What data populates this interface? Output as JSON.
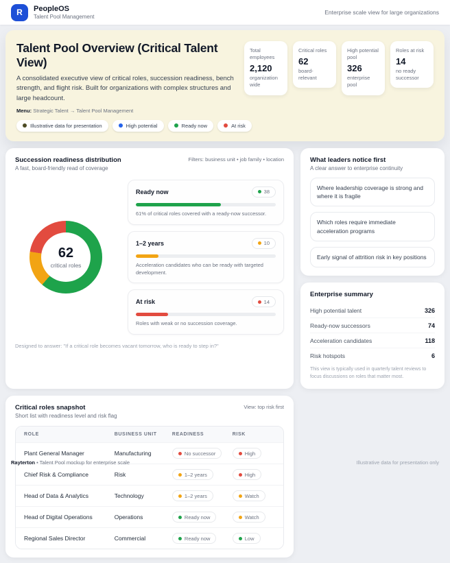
{
  "colors": {
    "brand": "#1d4fd7",
    "green": "#1ea34b",
    "amber": "#f2a413",
    "red": "#e24b3f",
    "blue": "#2563eb",
    "olive": "#4d4b24"
  },
  "header": {
    "logo_letter": "R",
    "app_name": "PeopleOS",
    "app_subtitle": "Talent Pool Management",
    "right_note": "Enterprise scale view for large organizations"
  },
  "hero": {
    "title": "Talent Pool Overview (Critical Talent View)",
    "description": "A consolidated executive view of critical roles, succession readiness, bench strength, and flight risk. Built for organizations with complex structures and large headcount.",
    "menu_label": "Menu:",
    "menu_path": "Strategic Talent → Talent Pool Management",
    "pills": [
      {
        "label": "Illustrative data for presentation",
        "color": "olive"
      },
      {
        "label": "High potential",
        "color": "blue"
      },
      {
        "label": "Ready now",
        "color": "green"
      },
      {
        "label": "At risk",
        "color": "red"
      }
    ],
    "kpis": [
      {
        "label": "Total employees",
        "value": "2,120",
        "note": "organization wide"
      },
      {
        "label": "Critical roles",
        "value": "62",
        "note": "board-relevant"
      },
      {
        "label": "High potential pool",
        "value": "326",
        "note": "enterprise pool"
      },
      {
        "label": "Roles at risk",
        "value": "14",
        "note": "no ready successor"
      }
    ]
  },
  "succession": {
    "title": "Succession readiness distribution",
    "subtitle": "A fast, board-friendly read of coverage",
    "filters": "Filters: business unit • job family • location",
    "donut_center_value": "62",
    "donut_center_label": "critical roles",
    "items": [
      {
        "label": "Ready now",
        "count": "38",
        "pct": "61%",
        "color": "green",
        "caption": "61% of critical roles covered with a ready-now successor."
      },
      {
        "label": "1–2 years",
        "count": "10",
        "pct": "16%",
        "color": "amber",
        "caption": "Acceleration candidates who can be ready with targeted development."
      },
      {
        "label": "At risk",
        "count": "14",
        "pct": "23%",
        "color": "red",
        "caption": "Roles with weak or no succession coverage."
      }
    ],
    "footnote": "Designed to answer: \"If a critical role becomes vacant tomorrow, who is ready to step in?\""
  },
  "leaders": {
    "title": "What leaders notice first",
    "subtitle": "A clear answer to enterprise continuity",
    "items": [
      "Where leadership coverage is strong and where it is fragile",
      "Which roles require immediate acceleration programs",
      "Early signal of attrition risk in key positions"
    ]
  },
  "summary": {
    "title": "Enterprise summary",
    "rows": [
      {
        "label": "High potential talent",
        "value": "326"
      },
      {
        "label": "Ready-now successors",
        "value": "74"
      },
      {
        "label": "Acceleration candidates",
        "value": "118"
      },
      {
        "label": "Risk hotspots",
        "value": "6"
      }
    ],
    "footnote": "This view is typically used in quarterly talent reviews to focus discussions on roles that matter most."
  },
  "snapshot": {
    "title": "Critical roles snapshot",
    "subtitle": "Short list with readiness level and risk flag",
    "view_note": "View: top risk first",
    "columns": [
      "ROLE",
      "BUSINESS UNIT",
      "READINESS",
      "RISK"
    ],
    "rows": [
      {
        "role": "Plant General Manager",
        "business_unit": "Manufacturing",
        "readiness": {
          "label": "No successor",
          "color": "red"
        },
        "risk": {
          "label": "High",
          "color": "red"
        }
      },
      {
        "role": "Chief Risk & Compliance",
        "business_unit": "Risk",
        "readiness": {
          "label": "1–2 years",
          "color": "amber"
        },
        "risk": {
          "label": "High",
          "color": "red"
        }
      },
      {
        "role": "Head of Data & Analytics",
        "business_unit": "Technology",
        "readiness": {
          "label": "1–2 years",
          "color": "amber"
        },
        "risk": {
          "label": "Watch",
          "color": "amber"
        }
      },
      {
        "role": "Head of Digital Operations",
        "business_unit": "Operations",
        "readiness": {
          "label": "Ready now",
          "color": "green"
        },
        "risk": {
          "label": "Watch",
          "color": "amber"
        }
      },
      {
        "role": "Regional Sales Director",
        "business_unit": "Commercial",
        "readiness": {
          "label": "Ready now",
          "color": "green"
        },
        "risk": {
          "label": "Low",
          "color": "green"
        }
      }
    ]
  },
  "footer": {
    "brand": "Rayterton",
    "left_note": "• Talent Pool mockup for enterprise scale",
    "right_note": "Illustrative data for presentation only"
  },
  "chart_data": {
    "type": "pie",
    "title": "Succession readiness distribution",
    "categories": [
      "Ready now",
      "1–2 years",
      "At risk"
    ],
    "values": [
      38,
      10,
      14
    ],
    "colors": [
      "green",
      "amber",
      "red"
    ],
    "center_value": 62,
    "center_label": "critical roles",
    "legend_position": "right"
  }
}
